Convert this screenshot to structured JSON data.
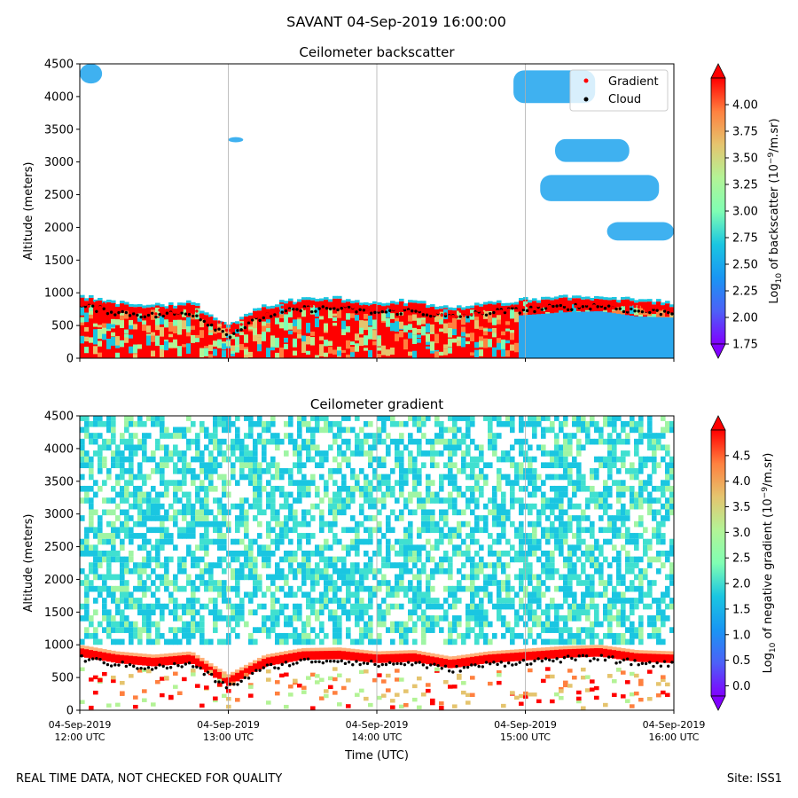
{
  "figure": {
    "suptitle": "SAVANT 04-Sep-2019 16:00:00",
    "footer_left": "REAL TIME DATA, NOT CHECKED FOR QUALITY",
    "footer_right": "Site: ISS1"
  },
  "chart_data": [
    {
      "type": "heatmap",
      "title": "Ceilometer backscatter",
      "xlabel": "",
      "ylabel": "Altitude (meters)",
      "x_ticks": [
        "04-Sep-2019\n12:00 UTC",
        "04-Sep-2019\n13:00 UTC",
        "04-Sep-2019\n14:00 UTC",
        "04-Sep-2019\n15:00 UTC",
        "04-Sep-2019\n16:00 UTC"
      ],
      "xlim": [
        12,
        16
      ],
      "y_ticks": [
        0,
        500,
        1000,
        1500,
        2000,
        2500,
        3000,
        3500,
        4000,
        4500
      ],
      "ylim": [
        0,
        4500
      ],
      "grid": "vertical lines at x ticks",
      "legend": {
        "placement": "top-right",
        "entries": [
          {
            "label": "Gradient",
            "marker": "dot",
            "color": "#ff0000"
          },
          {
            "label": "Cloud",
            "marker": "dot",
            "color": "#000000"
          }
        ]
      },
      "colorbar": {
        "label": "Log$_{10}$ of backscatter (10$^{-9}$/m.sr)",
        "label_parts": [
          "Log",
          "10",
          " of backscatter (10",
          "−9",
          "/m.sr)"
        ],
        "ticks": [
          "1.75",
          "2.00",
          "2.25",
          "2.50",
          "2.75",
          "3.00",
          "3.25",
          "3.50",
          "3.75",
          "4.00"
        ],
        "range": [
          1.75,
          4.25
        ],
        "colormap": "rainbow",
        "extend": "both"
      },
      "layers": [
        {
          "name": "aerosol layer",
          "t_range": [
            12.0,
            16.0
          ],
          "altitude_top_approx": 850,
          "value_approx": 4.2
        },
        {
          "name": "high cloud patches",
          "t_range": [
            14.9,
            16.0
          ],
          "altitude_range": [
            1500,
            4400
          ],
          "value_approx": 2.3
        }
      ],
      "series": [
        {
          "name": "Cloud",
          "t": [
            12.0,
            12.25,
            12.5,
            12.75,
            13.0,
            13.25,
            13.5,
            13.75,
            14.0,
            14.25,
            14.5,
            14.75,
            15.0,
            15.25,
            15.5,
            15.75,
            16.0
          ],
          "altitude": [
            800,
            700,
            650,
            700,
            350,
            650,
            750,
            760,
            700,
            720,
            620,
            700,
            740,
            780,
            800,
            720,
            700
          ]
        },
        {
          "name": "Gradient",
          "t": [
            12.0,
            12.25,
            12.5,
            12.75,
            13.0,
            13.25,
            13.5,
            13.75,
            14.0,
            14.25,
            14.5,
            14.75,
            15.0,
            15.25,
            15.5,
            15.75,
            16.0
          ],
          "altitude": [
            850,
            760,
            720,
            740,
            450,
            700,
            800,
            810,
            760,
            760,
            660,
            740,
            780,
            820,
            840,
            760,
            740
          ]
        }
      ]
    },
    {
      "type": "heatmap",
      "title": "Ceilometer gradient",
      "xlabel": "Time (UTC)",
      "ylabel": "Altitude (meters)",
      "x_ticks": [
        "04-Sep-2019\n12:00 UTC",
        "04-Sep-2019\n13:00 UTC",
        "04-Sep-2019\n14:00 UTC",
        "04-Sep-2019\n15:00 UTC",
        "04-Sep-2019\n16:00 UTC"
      ],
      "xlim": [
        12,
        16
      ],
      "y_ticks": [
        0,
        500,
        1000,
        1500,
        2000,
        2500,
        3000,
        3500,
        4000,
        4500
      ],
      "ylim": [
        0,
        4500
      ],
      "grid": "vertical lines at x ticks",
      "colorbar": {
        "label": "Log$_{10}$ of negative gradient (10$^{-9}$/m.sr)",
        "label_parts": [
          "Log",
          "10",
          " of negative gradient (10",
          "−9",
          "/m.sr)"
        ],
        "ticks": [
          "0.0",
          "0.5",
          "1.0",
          "1.5",
          "2.0",
          "2.5",
          "3.0",
          "3.5",
          "4.0",
          "4.5"
        ],
        "range": [
          -0.2,
          5.0
        ],
        "colormap": "rainbow",
        "extend": "both"
      },
      "layers": [
        {
          "name": "boundary layer top gradient",
          "t_range": [
            12.0,
            16.0
          ],
          "altitude_approx": 850,
          "value_approx": 4.6
        },
        {
          "name": "background noise field",
          "t_range": [
            12.0,
            16.0
          ],
          "altitude_range": [
            1200,
            4500
          ],
          "value_approx": 1.5
        }
      ],
      "series": [
        {
          "name": "Cloud",
          "t": [
            12.0,
            12.25,
            12.5,
            12.75,
            13.0,
            13.25,
            13.5,
            13.75,
            14.0,
            14.25,
            14.5,
            14.75,
            15.0,
            15.25,
            15.5,
            15.75,
            16.0
          ],
          "altitude": [
            800,
            700,
            650,
            700,
            350,
            650,
            750,
            760,
            700,
            720,
            620,
            700,
            740,
            780,
            800,
            720,
            700
          ]
        }
      ]
    }
  ]
}
